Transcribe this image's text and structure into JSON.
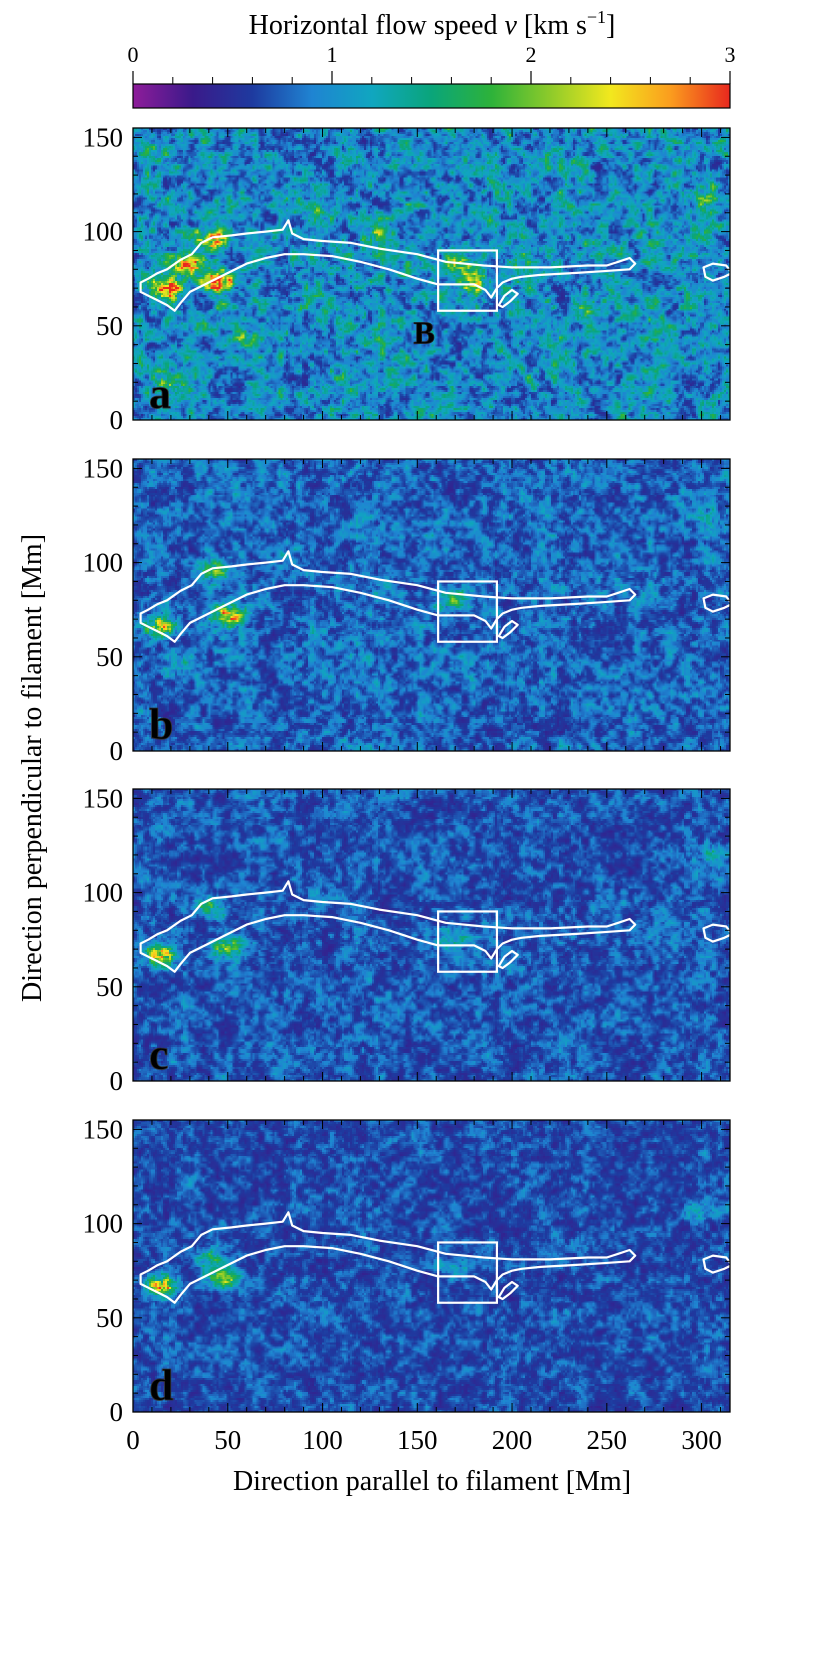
{
  "chart_data": {
    "type": "heatmap",
    "colorbar": {
      "label_main": "Horizontal flow speed ",
      "label_symbol": "v",
      "label_units": "  [km s",
      "label_units_sup": "−1",
      "label_units_close": "]",
      "range": [
        0,
        3
      ],
      "ticks": [
        {
          "value": 0,
          "label": "0"
        },
        {
          "value": 1,
          "label": "1"
        },
        {
          "value": 2,
          "label": "2"
        },
        {
          "value": 3,
          "label": "3"
        }
      ],
      "minor_step": 0.2,
      "colormap": [
        "#8e1c9a",
        "#3a1a8a",
        "#1e3a9f",
        "#1f84d2",
        "#10a6c0",
        "#0aa57a",
        "#2db23a",
        "#8fcb2a",
        "#f2e81e",
        "#fb9d1e",
        "#e8281e"
      ]
    },
    "xlabel": "Direction parallel to filament [Mm]",
    "ylabel": "Direction perpendicular to filament [Mm]",
    "xlim": [
      0,
      315
    ],
    "ylim": [
      0,
      155
    ],
    "x_ticks": [
      0,
      50,
      100,
      150,
      200,
      250,
      300
    ],
    "y_ticks": [
      0,
      50,
      100,
      150
    ],
    "x_minor_step": 10,
    "y_minor_step": 10,
    "box": {
      "x0": 161,
      "x1": 192,
      "y0": 58,
      "y1": 90,
      "label": "B"
    },
    "filament_contour_upper": [
      [
        4,
        73
      ],
      [
        8,
        75
      ],
      [
        13,
        78
      ],
      [
        18,
        80
      ],
      [
        25,
        85
      ],
      [
        31,
        88
      ],
      [
        36,
        94
      ],
      [
        42,
        97
      ],
      [
        52,
        98
      ],
      [
        60,
        99
      ],
      [
        70,
        100
      ],
      [
        79,
        101
      ],
      [
        82,
        106
      ],
      [
        84,
        99
      ],
      [
        90,
        96
      ],
      [
        100,
        95
      ],
      [
        115,
        94
      ],
      [
        130,
        91
      ],
      [
        150,
        88
      ],
      [
        165,
        84
      ],
      [
        185,
        82
      ],
      [
        200,
        81
      ],
      [
        220,
        81
      ],
      [
        240,
        82
      ],
      [
        250,
        82
      ],
      [
        256,
        84
      ],
      [
        262,
        86
      ],
      [
        265,
        83
      ],
      [
        262,
        80
      ],
      [
        248,
        79
      ],
      [
        232,
        78
      ],
      [
        215,
        77
      ],
      [
        205,
        76
      ],
      [
        200,
        75
      ],
      [
        195,
        73
      ],
      [
        192,
        70
      ],
      [
        189,
        65
      ],
      [
        186,
        69
      ],
      [
        180,
        72
      ],
      [
        170,
        72
      ],
      [
        161,
        72
      ],
      [
        150,
        75
      ],
      [
        135,
        80
      ],
      [
        120,
        84
      ],
      [
        105,
        87
      ],
      [
        90,
        88
      ],
      [
        80,
        88
      ],
      [
        70,
        86
      ],
      [
        60,
        83
      ],
      [
        48,
        77
      ],
      [
        38,
        72
      ],
      [
        30,
        68
      ],
      [
        25,
        62
      ],
      [
        22,
        58
      ],
      [
        18,
        61
      ],
      [
        12,
        64
      ],
      [
        8,
        66
      ],
      [
        4,
        68
      ]
    ],
    "filament_contour_lower": [
      [
        200,
        69
      ],
      [
        196,
        66
      ],
      [
        193,
        61
      ],
      [
        195,
        60
      ],
      [
        199,
        63
      ],
      [
        203,
        67
      ]
    ],
    "outer_island_contour": [
      [
        301,
        81
      ],
      [
        306,
        83
      ],
      [
        313,
        82
      ],
      [
        316,
        78
      ],
      [
        312,
        76
      ],
      [
        306,
        74
      ],
      [
        302,
        76
      ]
    ],
    "panels": [
      {
        "letter": "a",
        "intensity": 1.0,
        "hotspots": [
          [
            18,
            70,
            1.0
          ],
          [
            45,
            73,
            0.95
          ],
          [
            42,
            95,
            0.9
          ],
          [
            30,
            82,
            0.75
          ],
          [
            172,
            82,
            0.7
          ],
          [
            178,
            72,
            0.6
          ],
          [
            100,
            110,
            0.35
          ],
          [
            20,
            20,
            0.35
          ],
          [
            300,
            118,
            0.35
          ],
          [
            240,
            58,
            0.35
          ],
          [
            60,
            45,
            0.3
          ],
          [
            130,
            100,
            0.3
          ]
        ]
      },
      {
        "letter": "b",
        "intensity": 0.66,
        "hotspots": [
          [
            50,
            72,
            1.0
          ],
          [
            15,
            66,
            0.8
          ],
          [
            42,
            96,
            0.55
          ],
          [
            170,
            80,
            0.45
          ],
          [
            305,
            122,
            0.25
          ],
          [
            25,
            45,
            0.25
          ]
        ]
      },
      {
        "letter": "c",
        "intensity": 0.55,
        "hotspots": [
          [
            15,
            67,
            0.9
          ],
          [
            50,
            71,
            0.7
          ],
          [
            40,
            92,
            0.4
          ],
          [
            170,
            76,
            0.3
          ],
          [
            305,
            120,
            0.25
          ]
        ]
      },
      {
        "letter": "d",
        "intensity": 0.5,
        "hotspots": [
          [
            15,
            67,
            1.0
          ],
          [
            48,
            71,
            0.75
          ],
          [
            40,
            82,
            0.45
          ],
          [
            170,
            76,
            0.3
          ],
          [
            300,
            108,
            0.25
          ]
        ]
      }
    ]
  }
}
